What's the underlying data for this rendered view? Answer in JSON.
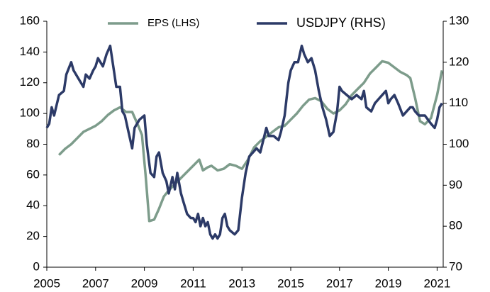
{
  "chart_data": {
    "type": "line",
    "xlim": [
      2005,
      2021.25
    ],
    "xticks": [
      2005,
      2007,
      2009,
      2011,
      2013,
      2015,
      2017,
      2019,
      2021
    ],
    "ylim": [
      0,
      160
    ],
    "yticks": [
      0,
      20,
      40,
      60,
      80,
      100,
      120,
      140,
      160
    ],
    "y2lim": [
      70,
      130
    ],
    "y2ticks": [
      70,
      80,
      90,
      100,
      110,
      120,
      130
    ],
    "legend": "top",
    "series": [
      {
        "name": "EPS (LHS)",
        "color": "#7d9c8b",
        "axis": "y",
        "x": [
          2005.5,
          2005.75,
          2006,
          2006.25,
          2006.5,
          2006.75,
          2007,
          2007.25,
          2007.5,
          2007.75,
          2008,
          2008.25,
          2008.5,
          2008.75,
          2008.9,
          2009.05,
          2009.2,
          2009.4,
          2009.6,
          2009.8,
          2010,
          2010.25,
          2010.5,
          2010.75,
          2011,
          2011.25,
          2011.4,
          2011.6,
          2011.75,
          2012,
          2012.25,
          2012.5,
          2012.75,
          2013,
          2013.25,
          2013.5,
          2013.75,
          2014,
          2014.25,
          2014.5,
          2014.75,
          2015,
          2015.25,
          2015.5,
          2015.75,
          2016,
          2016.25,
          2016.5,
          2016.75,
          2017,
          2017.25,
          2017.5,
          2017.75,
          2018,
          2018.25,
          2018.5,
          2018.75,
          2019,
          2019.25,
          2019.5,
          2019.75,
          2019.9,
          2020.1,
          2020.3,
          2020.5,
          2020.75,
          2021,
          2021.2
        ],
        "values": [
          73,
          77,
          80,
          84,
          88,
          90,
          92,
          95,
          99,
          102,
          104,
          101,
          101,
          92,
          86,
          60,
          30,
          31,
          38,
          46,
          50,
          54,
          58,
          62,
          66,
          70,
          63,
          65,
          66,
          63,
          64,
          67,
          66,
          64,
          70,
          78,
          82,
          85,
          88,
          91,
          92,
          96,
          100,
          105,
          109,
          110,
          108,
          103,
          100,
          102,
          106,
          112,
          116,
          120,
          126,
          130,
          134,
          133,
          130,
          127,
          125,
          123,
          110,
          95,
          93,
          97,
          112,
          128
        ]
      },
      {
        "name": "USDJPY (RHS)",
        "color": "#2c3a67",
        "axis": "y2",
        "x": [
          2005,
          2005.1,
          2005.2,
          2005.3,
          2005.5,
          2005.7,
          2005.8,
          2006,
          2006.1,
          2006.3,
          2006.5,
          2006.6,
          2006.75,
          2006.9,
          2007,
          2007.1,
          2007.3,
          2007.45,
          2007.6,
          2007.75,
          2007.85,
          2008,
          2008.1,
          2008.2,
          2008.35,
          2008.5,
          2008.6,
          2008.8,
          2009,
          2009.1,
          2009.25,
          2009.4,
          2009.5,
          2009.6,
          2009.75,
          2009.9,
          2010,
          2010.15,
          2010.25,
          2010.35,
          2010.5,
          2010.6,
          2010.75,
          2010.9,
          2011,
          2011.1,
          2011.2,
          2011.3,
          2011.4,
          2011.5,
          2011.6,
          2011.7,
          2011.8,
          2011.9,
          2012,
          2012.1,
          2012.2,
          2012.3,
          2012.4,
          2012.5,
          2012.7,
          2012.85,
          2013,
          2013.15,
          2013.3,
          2013.45,
          2013.6,
          2013.75,
          2014,
          2014.1,
          2014.3,
          2014.5,
          2014.6,
          2014.75,
          2014.9,
          2015,
          2015.15,
          2015.3,
          2015.45,
          2015.55,
          2015.7,
          2015.85,
          2016,
          2016.15,
          2016.3,
          2016.45,
          2016.6,
          2016.75,
          2016.9,
          2017,
          2017.1,
          2017.3,
          2017.5,
          2017.7,
          2017.9,
          2018,
          2018.1,
          2018.3,
          2018.45,
          2018.6,
          2018.75,
          2018.9,
          2019,
          2019.1,
          2019.25,
          2019.4,
          2019.6,
          2019.75,
          2019.9,
          2020,
          2020.1,
          2020.25,
          2020.5,
          2020.75,
          2020.9,
          2021,
          2021.1,
          2021.2
        ],
        "values": [
          104,
          105,
          109,
          107,
          112,
          113,
          117,
          120,
          118,
          116,
          114,
          117,
          116,
          118,
          119,
          121,
          119,
          122,
          124,
          118,
          114,
          114,
          108,
          107,
          103,
          99,
          104,
          106,
          107,
          100,
          93,
          92,
          97,
          98,
          93,
          91,
          88,
          92,
          89,
          93,
          88,
          86,
          83,
          82,
          82,
          81,
          83,
          80,
          82,
          80,
          81,
          78,
          77,
          78,
          77,
          78,
          82,
          83,
          80,
          79,
          78,
          79,
          87,
          93,
          97,
          98,
          99,
          98,
          104,
          102,
          102,
          101,
          103,
          107,
          115,
          118,
          120,
          120,
          124,
          122,
          120,
          121,
          118,
          113,
          109,
          106,
          102,
          103,
          108,
          114,
          113,
          112,
          111,
          112,
          111,
          113,
          109,
          108,
          110,
          111,
          112,
          113,
          110,
          111,
          112,
          110,
          107,
          108,
          109,
          109,
          108,
          107,
          107,
          105,
          104,
          106,
          109,
          110
        ]
      }
    ]
  }
}
